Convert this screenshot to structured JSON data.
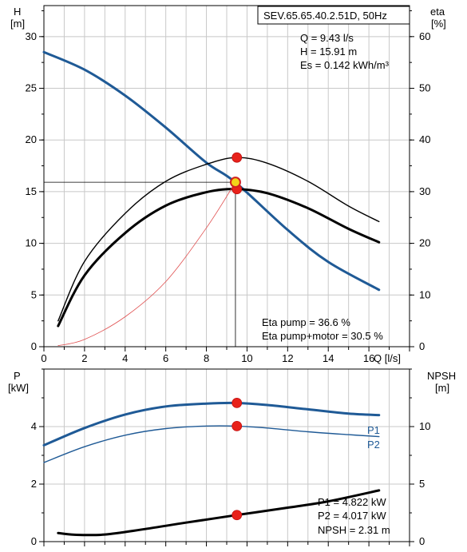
{
  "chart_data": [
    {
      "type": "line",
      "title": "SEV.65.65.40.2.51D, 50Hz",
      "xlabel": "Q [l/s]",
      "x_ticks": [
        0,
        2,
        4,
        6,
        8,
        10,
        12,
        14,
        16
      ],
      "xlim": [
        0,
        18
      ],
      "ylabel_left": "H\n[m]",
      "ylim_left": [
        0,
        33
      ],
      "y_ticks_left": [
        0,
        5,
        10,
        15,
        20,
        25,
        30
      ],
      "ylabel_right": "eta\n[%]",
      "ylim_right": [
        0,
        66
      ],
      "y_ticks_right": [
        0,
        10,
        20,
        30,
        40,
        50,
        60
      ],
      "grid": true,
      "series": [
        {
          "axis": "left",
          "color": "#1f5a96",
          "points": [
            [
              0,
              28.5
            ],
            [
              2,
              26.8
            ],
            [
              4,
              24.3
            ],
            [
              6,
              21.2
            ],
            [
              8,
              17.8
            ],
            [
              9.43,
              15.9
            ],
            [
              12,
              11.3
            ],
            [
              14,
              8.2
            ],
            [
              16.5,
              5.5
            ]
          ]
        },
        {
          "axis": "right",
          "color": "#000000",
          "points": [
            [
              0.7,
              5.0
            ],
            [
              2,
              16.5
            ],
            [
              4,
              25.8
            ],
            [
              6,
              32.0
            ],
            [
              8,
              35.3
            ],
            [
              9.5,
              36.6
            ],
            [
              11,
              35.5
            ],
            [
              13,
              32.0
            ],
            [
              15,
              27.2
            ],
            [
              16.5,
              24.2
            ]
          ]
        },
        {
          "axis": "right",
          "color": "#000000",
          "points": [
            [
              0.7,
              4.0
            ],
            [
              2,
              13.8
            ],
            [
              4,
              22.0
            ],
            [
              6,
              27.3
            ],
            [
              8,
              29.9
            ],
            [
              9.5,
              30.5
            ],
            [
              11,
              29.7
            ],
            [
              13,
              26.8
            ],
            [
              15,
              22.8
            ],
            [
              16.5,
              20.2
            ]
          ]
        },
        {
          "axis": "left",
          "color": "#e05050",
          "points": [
            [
              0.7,
              0.1
            ],
            [
              2,
              0.7
            ],
            [
              4,
              2.9
            ],
            [
              6,
              6.3
            ],
            [
              8,
              11.5
            ],
            [
              9.43,
              15.91
            ]
          ]
        }
      ],
      "operating_point": {
        "x": 9.43,
        "y": 15.91,
        "axis": "left"
      },
      "markers": [
        {
          "x": 9.5,
          "y": 36.6,
          "axis": "right"
        },
        {
          "x": 9.5,
          "y": 30.5,
          "axis": "right"
        }
      ],
      "annotations": {
        "q": "Q = 9.43 l/s",
        "h": "H = 15.91 m",
        "es": "Es = 0.142 kWh/m³",
        "eta_pump": "Eta pump = 36.6 %",
        "eta_total": "Eta pump+motor = 30.5 %"
      }
    },
    {
      "type": "line",
      "xlim": [
        0,
        18
      ],
      "ylabel_left": "P\n[kW]",
      "ylim_left": [
        0,
        6
      ],
      "y_ticks_left": [
        0,
        2,
        4
      ],
      "ylabel_right": "NPSH\n[m]",
      "ylim_right": [
        0,
        15
      ],
      "y_ticks_right": [
        0,
        5,
        10
      ],
      "grid": true,
      "series": [
        {
          "name": "P1",
          "axis": "left",
          "color": "#1f5a96",
          "points": [
            [
              0,
              3.35
            ],
            [
              2,
              3.95
            ],
            [
              4,
              4.42
            ],
            [
              6,
              4.7
            ],
            [
              8,
              4.8
            ],
            [
              9.5,
              4.82
            ],
            [
              11,
              4.75
            ],
            [
              13,
              4.6
            ],
            [
              15,
              4.45
            ],
            [
              16.5,
              4.4
            ]
          ]
        },
        {
          "name": "P2",
          "axis": "left",
          "color": "#1f5a96",
          "points": [
            [
              0,
              2.75
            ],
            [
              2,
              3.3
            ],
            [
              4,
              3.7
            ],
            [
              6,
              3.93
            ],
            [
              8,
              4.02
            ],
            [
              9.5,
              4.017
            ],
            [
              11,
              3.95
            ],
            [
              13,
              3.82
            ],
            [
              15,
              3.72
            ],
            [
              16.5,
              3.65
            ]
          ]
        },
        {
          "axis": "right",
          "color": "#000000",
          "points": [
            [
              0.7,
              0.75
            ],
            [
              1.5,
              0.6
            ],
            [
              3,
              0.62
            ],
            [
              5,
              1.1
            ],
            [
              7,
              1.65
            ],
            [
              9.5,
              2.31
            ],
            [
              12,
              2.95
            ],
            [
              14,
              3.5
            ],
            [
              16.5,
              4.45
            ]
          ]
        }
      ],
      "markers": [
        {
          "x": 9.5,
          "y": 4.822,
          "axis": "left"
        },
        {
          "x": 9.5,
          "y": 4.017,
          "axis": "left"
        },
        {
          "x": 9.5,
          "y": 2.31,
          "axis": "right"
        }
      ],
      "annotations": {
        "p1": "P1 = 4.822 kW",
        "p2": "P2 = 4.017 kW",
        "npsh": "NPSH = 2.31 m"
      }
    }
  ]
}
